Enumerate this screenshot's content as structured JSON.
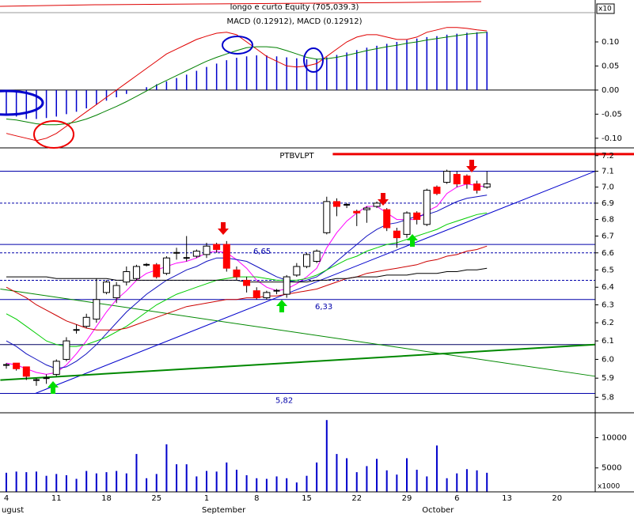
{
  "chart_data": [
    {
      "type": "macd",
      "title": "longo e curto Equity (705,039.3)",
      "subtitle": "MACD (0.12912), MACD (0.12912)",
      "axis_note": "x10",
      "ylim": [
        -0.12,
        0.187
      ],
      "yticks": [
        {
          "value": 0.1,
          "label": "0.10"
        },
        0.05,
        {
          "value": 0,
          "label": "0.00"
        },
        -0.05,
        {
          "value": -0.1,
          "label": "-0.10"
        }
      ],
      "series": [
        {
          "kind": "bar",
          "color": "#0000cc",
          "values": [
            -0.05,
            -0.055,
            -0.06,
            -0.06,
            -0.058,
            -0.055,
            -0.05,
            -0.045,
            -0.038,
            -0.03,
            -0.022,
            -0.015,
            -0.008,
            -0.001,
            0.006,
            0.012,
            0.018,
            0.025,
            0.032,
            0.04,
            0.048,
            0.055,
            0.062,
            0.067,
            0.07,
            0.072,
            0.072,
            0.07,
            0.068,
            0.066,
            0.064,
            0.065,
            0.068,
            0.073,
            0.078,
            0.083,
            0.088,
            0.092,
            0.096,
            0.1,
            0.104,
            0.107,
            0.11,
            0.112,
            0.115,
            0.117,
            0.119,
            0.12,
            0.121,
            null,
            null,
            null,
            null,
            null,
            null,
            null,
            null,
            null,
            null
          ]
        },
        {
          "kind": "line",
          "color": "#e00000",
          "values": [
            -0.09,
            -0.095,
            -0.1,
            -0.105,
            -0.1,
            -0.09,
            -0.075,
            -0.06,
            -0.045,
            -0.03,
            -0.015,
            0.0,
            0.015,
            0.03,
            0.045,
            0.06,
            0.075,
            0.085,
            0.095,
            0.105,
            0.112,
            0.118,
            0.12,
            0.115,
            0.1,
            0.085,
            0.07,
            0.06,
            0.05,
            0.048,
            0.05,
            0.055,
            0.07,
            0.085,
            0.1,
            0.11,
            0.115,
            0.115,
            0.11,
            0.105,
            0.105,
            0.11,
            0.12,
            0.125,
            0.13,
            0.13,
            0.128,
            0.125,
            0.123,
            null,
            null,
            null,
            null,
            null,
            null,
            null,
            null,
            null,
            null
          ]
        },
        {
          "kind": "line",
          "color": "#008000",
          "values": [
            -0.06,
            -0.062,
            -0.066,
            -0.07,
            -0.072,
            -0.072,
            -0.07,
            -0.066,
            -0.06,
            -0.052,
            -0.043,
            -0.034,
            -0.024,
            -0.013,
            -0.002,
            0.01,
            0.02,
            0.03,
            0.04,
            0.05,
            0.06,
            0.068,
            0.075,
            0.082,
            0.088,
            0.09,
            0.09,
            0.088,
            0.082,
            0.075,
            0.068,
            0.064,
            0.065,
            0.068,
            0.072,
            0.077,
            0.082,
            0.086,
            0.09,
            0.093,
            0.097,
            0.1,
            0.104,
            0.107,
            0.11,
            0.113,
            0.116,
            0.118,
            0.12,
            null,
            null,
            null,
            null,
            null,
            null,
            null,
            null,
            null,
            null
          ]
        }
      ]
    },
    {
      "type": "candlestick",
      "title": "PTBVLPT",
      "categories": [
        "4",
        null,
        null,
        null,
        null,
        "11",
        null,
        null,
        null,
        null,
        "18",
        null,
        null,
        null,
        null,
        "25",
        null,
        null,
        null,
        null,
        "1",
        null,
        null,
        null,
        null,
        "8",
        null,
        null,
        null,
        null,
        "15",
        null,
        null,
        null,
        null,
        "22",
        null,
        null,
        null,
        null,
        "29",
        null,
        null,
        null,
        null,
        "6",
        null,
        null,
        null,
        null,
        "13",
        null,
        null,
        null,
        null,
        "20",
        null,
        null,
        null
      ],
      "months": [
        "ugust",
        null,
        null,
        null,
        null,
        null,
        null,
        null,
        null,
        null,
        null,
        null,
        null,
        null,
        null,
        null,
        null,
        null,
        null,
        null,
        "September",
        null,
        null,
        null,
        null,
        null,
        null,
        null,
        null,
        null,
        null,
        null,
        null,
        null,
        null,
        null,
        null,
        null,
        null,
        null,
        null,
        null,
        "October",
        null,
        null,
        null,
        null,
        null,
        null,
        null,
        null,
        null,
        null,
        null,
        null,
        null,
        null,
        null,
        null
      ],
      "open": [
        5.97,
        5.98,
        5.96,
        5.89,
        5.9,
        5.92,
        6.0,
        6.16,
        6.18,
        6.22,
        6.37,
        6.34,
        6.43,
        6.45,
        6.53,
        6.53,
        6.48,
        6.6,
        6.57,
        6.58,
        6.59,
        6.65,
        6.65,
        6.5,
        6.44,
        6.38,
        6.34,
        6.38,
        6.36,
        6.47,
        6.52,
        6.55,
        6.72,
        6.91,
        6.89,
        6.85,
        6.86,
        6.88,
        6.86,
        6.73,
        6.71,
        6.84,
        6.77,
        7.0,
        7.03,
        7.08,
        7.07,
        7.02,
        7.0,
        null,
        null,
        null,
        null,
        null,
        null,
        null,
        null,
        null,
        null
      ],
      "high": [
        5.98,
        5.98,
        5.96,
        5.9,
        5.92,
        6.0,
        6.12,
        6.19,
        6.25,
        6.45,
        6.44,
        6.43,
        6.52,
        6.53,
        6.54,
        6.54,
        6.58,
        6.63,
        6.7,
        6.62,
        6.66,
        6.66,
        6.67,
        6.52,
        6.46,
        6.4,
        6.38,
        6.39,
        6.47,
        6.54,
        6.6,
        6.62,
        6.94,
        6.93,
        6.9,
        6.86,
        6.88,
        6.91,
        6.87,
        6.75,
        6.85,
        6.85,
        6.99,
        7.01,
        7.11,
        7.1,
        7.08,
        7.04,
        7.1,
        null,
        null,
        null,
        null,
        null,
        null,
        null,
        null,
        null,
        null
      ],
      "low": [
        5.95,
        5.94,
        5.89,
        5.86,
        5.87,
        5.91,
        5.99,
        6.14,
        6.17,
        6.2,
        6.36,
        6.31,
        6.41,
        6.44,
        6.52,
        6.45,
        6.47,
        6.56,
        6.55,
        6.57,
        6.57,
        6.6,
        6.49,
        6.44,
        6.37,
        6.33,
        6.33,
        6.36,
        6.34,
        6.46,
        6.51,
        6.54,
        6.71,
        6.82,
        6.87,
        6.76,
        6.78,
        6.87,
        6.73,
        6.63,
        6.69,
        6.77,
        6.76,
        6.95,
        7.02,
        7.0,
        6.99,
        6.96,
        6.99,
        null,
        null,
        null,
        null,
        null,
        null,
        null,
        null,
        null,
        null
      ],
      "close": [
        5.97,
        5.95,
        5.91,
        5.89,
        5.9,
        5.99,
        6.1,
        6.16,
        6.23,
        6.33,
        6.43,
        6.41,
        6.49,
        6.52,
        6.53,
        6.46,
        6.57,
        6.6,
        6.57,
        6.61,
        6.64,
        6.62,
        6.51,
        6.46,
        6.41,
        6.34,
        6.37,
        6.38,
        6.46,
        6.52,
        6.59,
        6.61,
        6.91,
        6.88,
        6.89,
        6.84,
        6.87,
        6.9,
        6.75,
        6.69,
        6.84,
        6.8,
        6.98,
        6.96,
        7.1,
        7.02,
        7.02,
        6.98,
        7.02,
        null,
        null,
        null,
        null,
        null,
        null,
        null,
        null,
        null,
        null
      ],
      "up_color": "#ffffff",
      "down_color": "#ff0000",
      "series": [
        {
          "color": "#ff00ff",
          "values": [
            5.98,
            5.97,
            5.95,
            5.93,
            5.92,
            5.93,
            5.97,
            6.03,
            6.1,
            6.18,
            6.26,
            6.33,
            6.38,
            6.44,
            6.48,
            6.5,
            6.52,
            6.54,
            6.55,
            6.57,
            6.6,
            6.61,
            6.6,
            6.56,
            6.51,
            6.44,
            6.4,
            6.38,
            6.39,
            6.42,
            6.46,
            6.51,
            6.63,
            6.72,
            6.79,
            6.84,
            6.88,
            6.88,
            6.84,
            6.8,
            6.8,
            6.8,
            6.85,
            6.88,
            6.96,
            7.0,
            7.02,
            7.01,
            7.0,
            null,
            null,
            null,
            null,
            null,
            null,
            null,
            null,
            null,
            null
          ]
        },
        {
          "color": "#1010c0",
          "values": [
            6.1,
            6.07,
            6.03,
            6.0,
            5.97,
            5.95,
            5.96,
            5.99,
            6.03,
            6.08,
            6.14,
            6.2,
            6.26,
            6.31,
            6.36,
            6.4,
            6.44,
            6.47,
            6.5,
            6.52,
            6.55,
            6.57,
            6.57,
            6.56,
            6.55,
            6.52,
            6.49,
            6.46,
            6.44,
            6.43,
            6.44,
            6.46,
            6.5,
            6.55,
            6.6,
            6.65,
            6.7,
            6.74,
            6.77,
            6.78,
            6.8,
            6.82,
            6.83,
            6.85,
            6.88,
            6.91,
            6.93,
            6.94,
            6.95,
            null,
            null,
            null,
            null,
            null,
            null,
            null,
            null,
            null,
            null
          ]
        },
        {
          "color": "#00cc00",
          "values": [
            6.25,
            6.22,
            6.18,
            6.14,
            6.1,
            6.08,
            6.07,
            6.07,
            6.08,
            6.1,
            6.12,
            6.15,
            6.18,
            6.22,
            6.26,
            6.3,
            6.33,
            6.36,
            6.38,
            6.4,
            6.42,
            6.44,
            6.45,
            6.46,
            6.46,
            6.46,
            6.45,
            6.44,
            6.44,
            6.44,
            6.45,
            6.47,
            6.5,
            6.53,
            6.56,
            6.58,
            6.61,
            6.63,
            6.65,
            6.66,
            6.68,
            6.7,
            6.72,
            6.74,
            6.77,
            6.79,
            6.81,
            6.83,
            6.84,
            null,
            null,
            null,
            null,
            null,
            null,
            null,
            null,
            null,
            null
          ]
        },
        {
          "color": "#cc0000",
          "values": [
            6.4,
            6.37,
            6.34,
            6.3,
            6.27,
            6.24,
            6.21,
            6.19,
            6.17,
            6.16,
            6.16,
            6.16,
            6.17,
            6.19,
            6.21,
            6.23,
            6.25,
            6.27,
            6.29,
            6.3,
            6.31,
            6.32,
            6.33,
            6.33,
            6.34,
            6.34,
            6.35,
            6.35,
            6.36,
            6.37,
            6.38,
            6.39,
            6.41,
            6.43,
            6.45,
            6.46,
            6.48,
            6.49,
            6.5,
            6.51,
            6.52,
            6.53,
            6.55,
            6.56,
            6.58,
            6.59,
            6.61,
            6.62,
            6.64,
            null,
            null,
            null,
            null,
            null,
            null,
            null,
            null,
            null,
            null
          ]
        },
        {
          "color": "#000000",
          "values": [
            6.46,
            6.46,
            6.46,
            6.46,
            6.46,
            6.45,
            6.45,
            6.45,
            6.45,
            6.45,
            6.45,
            6.44,
            6.44,
            6.44,
            6.44,
            6.44,
            6.44,
            6.44,
            6.44,
            6.44,
            6.44,
            6.44,
            6.44,
            6.44,
            6.43,
            6.43,
            6.43,
            6.43,
            6.43,
            6.43,
            6.43,
            6.44,
            6.44,
            6.45,
            6.45,
            6.46,
            6.46,
            6.46,
            6.47,
            6.47,
            6.47,
            6.48,
            6.48,
            6.48,
            6.49,
            6.49,
            6.5,
            6.5,
            6.51,
            null,
            null,
            null,
            null,
            null,
            null,
            null,
            null,
            null,
            null
          ]
        }
      ],
      "ylim": [
        5.72,
        7.25
      ],
      "log": true,
      "yticks": [
        7.2,
        7.1,
        {
          "value": 7.0,
          "label": "7.0"
        },
        6.9,
        6.8,
        6.7,
        6.6,
        6.5,
        6.4,
        6.3,
        6.2,
        6.1,
        {
          "value": 6.0,
          "label": "6.0"
        },
        5.9,
        5.8
      ],
      "hlines": [
        {
          "value": 7.21,
          "color": "#ee0000",
          "thick": true,
          "start": 32.6
        },
        {
          "value": 7.1,
          "color": "#0000aa"
        },
        {
          "value": 6.9,
          "color": "#0000aa",
          "dash": true
        },
        {
          "value": 6.65,
          "color": "#0000aa",
          "label": "6,65"
        },
        {
          "value": 6.6,
          "color": "#0000aa",
          "dash": true
        },
        {
          "value": 6.44,
          "color": "#0000aa",
          "dash": true
        },
        {
          "value": 6.33,
          "color": "#0000aa",
          "label": "6,33"
        },
        {
          "value": 6.08,
          "color": "#000060"
        },
        {
          "value": 5.82,
          "color": "#0000aa",
          "label": "5,82"
        }
      ],
      "trendlines": [
        {
          "color": "#0000cc",
          "points": [
            [
              2.9,
              5.82
            ],
            [
              58.8,
              7.1
            ]
          ]
        },
        {
          "color": "#008800",
          "points": [
            [
              -0.6,
              5.89
            ],
            [
              58.8,
              6.08
            ]
          ],
          "thick": true
        },
        {
          "color": "#008800",
          "points": [
            [
              -0.6,
              6.39
            ],
            [
              58.8,
              5.91
            ]
          ]
        }
      ]
    },
    {
      "type": "bar",
      "values": [
        4200,
        4400,
        4300,
        4400,
        3700,
        4000,
        3800,
        3200,
        4500,
        4100,
        4300,
        4500,
        4100,
        7300,
        3300,
        4000,
        8900,
        5600,
        5600,
        3600,
        4500,
        4400,
        5900,
        4700,
        3800,
        3300,
        3200,
        3600,
        3300,
        2600,
        3700,
        5900,
        12900,
        7300,
        6600,
        4300,
        5300,
        6500,
        4600,
        3900,
        6600,
        4700,
        3600,
        8700,
        3300,
        4100,
        4800,
        4600,
        4200,
        null,
        null,
        null,
        null,
        null,
        null,
        null,
        null,
        null,
        null
      ],
      "color": "#0000cc",
      "ylim": [
        1050,
        14100
      ],
      "yticks": [
        10000,
        5000
      ],
      "axis_note": "x1000"
    }
  ]
}
